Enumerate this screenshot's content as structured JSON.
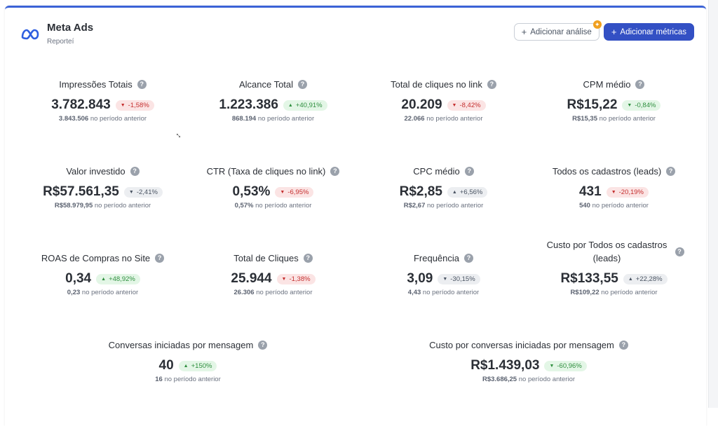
{
  "header": {
    "title": "Meta Ads",
    "subtitle": "Reporteí",
    "icon": "meta-logo-icon"
  },
  "actions": {
    "add_analysis": "Adicionar análise",
    "add_metrics": "Adicionar métricas",
    "plus": "+",
    "star": "✦"
  },
  "suffix": "no período anterior",
  "colors": {
    "accent": "#3350c4",
    "red": "#c53030",
    "green": "#2f8f3f"
  },
  "metrics": [
    {
      "title": "Impressões Totais",
      "value": "3.782.843",
      "change": "-1,58%",
      "dir": "down",
      "tone": "red",
      "prev": "3.843.506"
    },
    {
      "title": "Alcance Total",
      "value": "1.223.386",
      "change": "+40,91%",
      "dir": "up",
      "tone": "green",
      "prev": "868.194"
    },
    {
      "title": "Total de cliques no link",
      "value": "20.209",
      "change": "-8,42%",
      "dir": "down",
      "tone": "red",
      "prev": "22.066"
    },
    {
      "title": "CPM médio",
      "value": "R$15,22",
      "change": "-0,84%",
      "dir": "down",
      "tone": "green",
      "prev": "R$15,35"
    },
    {
      "title": "Valor investido",
      "value": "R$57.561,35",
      "change": "-2,41%",
      "dir": "down",
      "tone": "gray",
      "prev": "R$58.979,95"
    },
    {
      "title": "CTR (Taxa de cliques no link)",
      "value": "0,53%",
      "change": "-6,95%",
      "dir": "down",
      "tone": "red",
      "prev": "0,57%"
    },
    {
      "title": "CPC médio",
      "value": "R$2,85",
      "change": "+6,56%",
      "dir": "up",
      "tone": "gray",
      "prev": "R$2,67"
    },
    {
      "title": "Todos os cadastros (leads)",
      "value": "431",
      "change": "-20,19%",
      "dir": "down",
      "tone": "red",
      "prev": "540"
    },
    {
      "title": "ROAS de Compras no Site",
      "value": "0,34",
      "change": "+48,92%",
      "dir": "up",
      "tone": "green",
      "prev": "0,23"
    },
    {
      "title": "Total de Cliques",
      "value": "25.944",
      "change": "-1,38%",
      "dir": "down",
      "tone": "red",
      "prev": "26.306"
    },
    {
      "title": "Frequência",
      "value": "3,09",
      "change": "-30,15%",
      "dir": "down",
      "tone": "gray",
      "prev": "4,43"
    },
    {
      "title": "Custo por Todos os cadastros (leads)",
      "value": "R$133,55",
      "change": "+22,28%",
      "dir": "up",
      "tone": "gray",
      "prev": "R$109,22",
      "wrap": true
    },
    {
      "title": "Conversas iniciadas por mensagem",
      "value": "40",
      "change": "+150%",
      "dir": "up",
      "tone": "green",
      "prev": "16"
    },
    {
      "title": "Custo por conversas iniciadas por mensagem",
      "value": "R$1.439,03",
      "change": "-60,96%",
      "dir": "down",
      "tone": "green",
      "prev": "R$3.686,25"
    }
  ]
}
